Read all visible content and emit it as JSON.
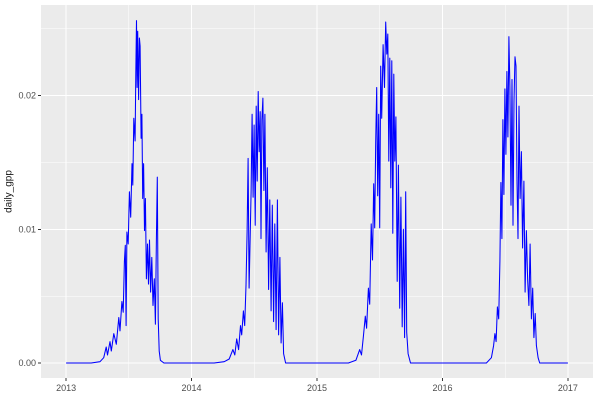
{
  "chart_data": {
    "type": "line",
    "title": "",
    "xlabel": "",
    "ylabel": "daily_gpp",
    "legend_position": "none",
    "grid": true,
    "theme": "ggplot2-gray",
    "colors": {
      "line": "#0000FF",
      "panel_bg": "#EBEBEB",
      "grid": "#FFFFFF",
      "tick": "#333333",
      "tick_label": "#4D4D4D",
      "axis_title": "#1A1A1A",
      "figure_bg": "#FFFFFF"
    },
    "xlim": [
      2012.8,
      2017.2
    ],
    "ylim": [
      -0.00112,
      0.02677
    ],
    "x_ticks": [
      {
        "value": 2013,
        "label": "2013"
      },
      {
        "value": 2014,
        "label": "2014"
      },
      {
        "value": 2015,
        "label": "2015"
      },
      {
        "value": 2016,
        "label": "2016"
      },
      {
        "value": 2017,
        "label": "2017"
      }
    ],
    "y_ticks": [
      {
        "value": 0.0,
        "label": "0.00"
      },
      {
        "value": 0.01,
        "label": "0.01"
      },
      {
        "value": 0.02,
        "label": "0.02"
      }
    ],
    "x_minor_ticks": [
      2013.5,
      2014.5,
      2015.5,
      2016.5
    ],
    "y_minor_ticks": [
      0.005,
      0.015,
      0.025
    ],
    "series": [
      {
        "name": "daily_gpp",
        "color": "#0000FF",
        "points": [
          [
            2013.0,
            0
          ],
          [
            2013.1,
            0
          ],
          [
            2013.2,
            0
          ],
          [
            2013.27,
            0.0001
          ],
          [
            2013.3,
            0.0004
          ],
          [
            2013.32,
            0.0012
          ],
          [
            2013.33,
            0.0006
          ],
          [
            2013.35,
            0.0016
          ],
          [
            2013.36,
            0.0009
          ],
          [
            2013.38,
            0.0022
          ],
          [
            2013.4,
            0.0014
          ],
          [
            2013.42,
            0.0034
          ],
          [
            2013.43,
            0.0024
          ],
          [
            2013.445,
            0.0046
          ],
          [
            2013.455,
            0.0038
          ],
          [
            2013.465,
            0.0076
          ],
          [
            2013.472,
            0.0088
          ],
          [
            2013.478,
            0.0028
          ],
          [
            2013.485,
            0.0098
          ],
          [
            2013.495,
            0.0089
          ],
          [
            2013.505,
            0.0128
          ],
          [
            2013.515,
            0.0109
          ],
          [
            2013.525,
            0.0149
          ],
          [
            2013.532,
            0.0133
          ],
          [
            2013.54,
            0.0183
          ],
          [
            2013.55,
            0.0166
          ],
          [
            2013.556,
            0.0216
          ],
          [
            2013.561,
            0.0256
          ],
          [
            2013.566,
            0.0206
          ],
          [
            2013.571,
            0.0248
          ],
          [
            2013.578,
            0.0197
          ],
          [
            2013.584,
            0.0243
          ],
          [
            2013.59,
            0.0237
          ],
          [
            2013.598,
            0.0168
          ],
          [
            2013.604,
            0.0186
          ],
          [
            2013.611,
            0.0123
          ],
          [
            2013.618,
            0.0149
          ],
          [
            2013.625,
            0.0099
          ],
          [
            2013.632,
            0.0123
          ],
          [
            2013.64,
            0.0063
          ],
          [
            2013.649,
            0.0089
          ],
          [
            2013.657,
            0.0059
          ],
          [
            2013.665,
            0.0092
          ],
          [
            2013.674,
            0.0053
          ],
          [
            2013.683,
            0.0079
          ],
          [
            2013.693,
            0.0043
          ],
          [
            2013.703,
            0.0063
          ],
          [
            2013.712,
            0.0029
          ],
          [
            2013.72,
            0.0093
          ],
          [
            2013.727,
            0.0139
          ],
          [
            2013.734,
            0.0033
          ],
          [
            2013.742,
            0.0009
          ],
          [
            2013.752,
            0.0002
          ],
          [
            2013.78,
            0
          ],
          [
            2013.88,
            0
          ],
          [
            2013.98,
            0
          ],
          [
            2014.08,
            0
          ],
          [
            2014.18,
            0
          ],
          [
            2014.26,
            0.0001
          ],
          [
            2014.3,
            0.0003
          ],
          [
            2014.33,
            0.001
          ],
          [
            2014.345,
            0.0006
          ],
          [
            2014.36,
            0.0018
          ],
          [
            2014.375,
            0.001
          ],
          [
            2014.39,
            0.0028
          ],
          [
            2014.4,
            0.0021
          ],
          [
            2014.413,
            0.0039
          ],
          [
            2014.424,
            0.0028
          ],
          [
            2014.434,
            0.0058
          ],
          [
            2014.443,
            0.0098
          ],
          [
            2014.451,
            0.0153
          ],
          [
            2014.459,
            0.0056
          ],
          [
            2014.467,
            0.0092
          ],
          [
            2014.475,
            0.0128
          ],
          [
            2014.483,
            0.0186
          ],
          [
            2014.491,
            0.0124
          ],
          [
            2014.499,
            0.0178
          ],
          [
            2014.507,
            0.0103
          ],
          [
            2014.515,
            0.0192
          ],
          [
            2014.523,
            0.0136
          ],
          [
            2014.531,
            0.0203
          ],
          [
            2014.539,
            0.0158
          ],
          [
            2014.547,
            0.0188
          ],
          [
            2014.554,
            0.0093
          ],
          [
            2014.561,
            0.0182
          ],
          [
            2014.569,
            0.0198
          ],
          [
            2014.577,
            0.0129
          ],
          [
            2014.585,
            0.0186
          ],
          [
            2014.594,
            0.0083
          ],
          [
            2014.604,
            0.0146
          ],
          [
            2014.614,
            0.0055
          ],
          [
            2014.624,
            0.0122
          ],
          [
            2014.634,
            0.0039
          ],
          [
            2014.644,
            0.0118
          ],
          [
            2014.654,
            0.0031
          ],
          [
            2014.664,
            0.0104
          ],
          [
            2014.674,
            0.0025
          ],
          [
            2014.684,
            0.0122
          ],
          [
            2014.694,
            0.0021
          ],
          [
            2014.704,
            0.0079
          ],
          [
            2014.714,
            0.0015
          ],
          [
            2014.724,
            0.0045
          ],
          [
            2014.734,
            0.0007
          ],
          [
            2014.75,
            0
          ],
          [
            2014.85,
            0
          ],
          [
            2014.95,
            0
          ],
          [
            2015.05,
            0
          ],
          [
            2015.15,
            0
          ],
          [
            2015.25,
            0
          ],
          [
            2015.31,
            0.0002
          ],
          [
            2015.34,
            0.001
          ],
          [
            2015.355,
            0.0006
          ],
          [
            2015.37,
            0.002
          ],
          [
            2015.385,
            0.0035
          ],
          [
            2015.395,
            0.0026
          ],
          [
            2015.41,
            0.0056
          ],
          [
            2015.42,
            0.0044
          ],
          [
            2015.432,
            0.0104
          ],
          [
            2015.442,
            0.0077
          ],
          [
            2015.452,
            0.0134
          ],
          [
            2015.46,
            0.0101
          ],
          [
            2015.468,
            0.0165
          ],
          [
            2015.476,
            0.0206
          ],
          [
            2015.484,
            0.0125
          ],
          [
            2015.492,
            0.0186
          ],
          [
            2015.5,
            0.0101
          ],
          [
            2015.508,
            0.0222
          ],
          [
            2015.516,
            0.0183
          ],
          [
            2015.527,
            0.0238
          ],
          [
            2015.538,
            0.0206
          ],
          [
            2015.548,
            0.0255
          ],
          [
            2015.556,
            0.0231
          ],
          [
            2015.564,
            0.0246
          ],
          [
            2015.572,
            0.0151
          ],
          [
            2015.58,
            0.0228
          ],
          [
            2015.588,
            0.0131
          ],
          [
            2015.596,
            0.0226
          ],
          [
            2015.604,
            0.0097
          ],
          [
            2015.612,
            0.0216
          ],
          [
            2015.62,
            0.0151
          ],
          [
            2015.629,
            0.0184
          ],
          [
            2015.639,
            0.0061
          ],
          [
            2015.649,
            0.0148
          ],
          [
            2015.659,
            0.0041
          ],
          [
            2015.669,
            0.0124
          ],
          [
            2015.679,
            0.0027
          ],
          [
            2015.689,
            0.01
          ],
          [
            2015.698,
            0.0019
          ],
          [
            2015.707,
            0.0128
          ],
          [
            2015.715,
            0.0023
          ],
          [
            2015.726,
            0.0007
          ],
          [
            2015.745,
            0
          ],
          [
            2015.85,
            0
          ],
          [
            2015.95,
            0
          ],
          [
            2016.05,
            0
          ],
          [
            2016.15,
            0
          ],
          [
            2016.25,
            0
          ],
          [
            2016.35,
            0
          ],
          [
            2016.39,
            0.0004
          ],
          [
            2016.408,
            0.0013
          ],
          [
            2016.418,
            0.0022
          ],
          [
            2016.428,
            0.0016
          ],
          [
            2016.438,
            0.0042
          ],
          [
            2016.448,
            0.0033
          ],
          [
            2016.458,
            0.0076
          ],
          [
            2016.466,
            0.0135
          ],
          [
            2016.474,
            0.0093
          ],
          [
            2016.482,
            0.0182
          ],
          [
            2016.49,
            0.0126
          ],
          [
            2016.498,
            0.0205
          ],
          [
            2016.506,
            0.0156
          ],
          [
            2016.514,
            0.0218
          ],
          [
            2016.522,
            0.0169
          ],
          [
            2016.53,
            0.0244
          ],
          [
            2016.538,
            0.0206
          ],
          [
            2016.546,
            0.0118
          ],
          [
            2016.554,
            0.0212
          ],
          [
            2016.562,
            0.0103
          ],
          [
            2016.57,
            0.0196
          ],
          [
            2016.578,
            0.0229
          ],
          [
            2016.586,
            0.0222
          ],
          [
            2016.594,
            0.0136
          ],
          [
            2016.602,
            0.0093
          ],
          [
            2016.61,
            0.0192
          ],
          [
            2016.619,
            0.0123
          ],
          [
            2016.629,
            0.0158
          ],
          [
            2016.639,
            0.0086
          ],
          [
            2016.649,
            0.0136
          ],
          [
            2016.659,
            0.0053
          ],
          [
            2016.669,
            0.0099
          ],
          [
            2016.679,
            0.0063
          ],
          [
            2016.689,
            0.0043
          ],
          [
            2016.699,
            0.0089
          ],
          [
            2016.709,
            0.0033
          ],
          [
            2016.719,
            0.0056
          ],
          [
            2016.729,
            0.0019
          ],
          [
            2016.739,
            0.0037
          ],
          [
            2016.749,
            0.0013
          ],
          [
            2016.762,
            0.0004
          ],
          [
            2016.775,
            0
          ],
          [
            2016.87,
            0
          ],
          [
            2016.95,
            0
          ],
          [
            2017.0,
            0
          ]
        ]
      }
    ]
  }
}
